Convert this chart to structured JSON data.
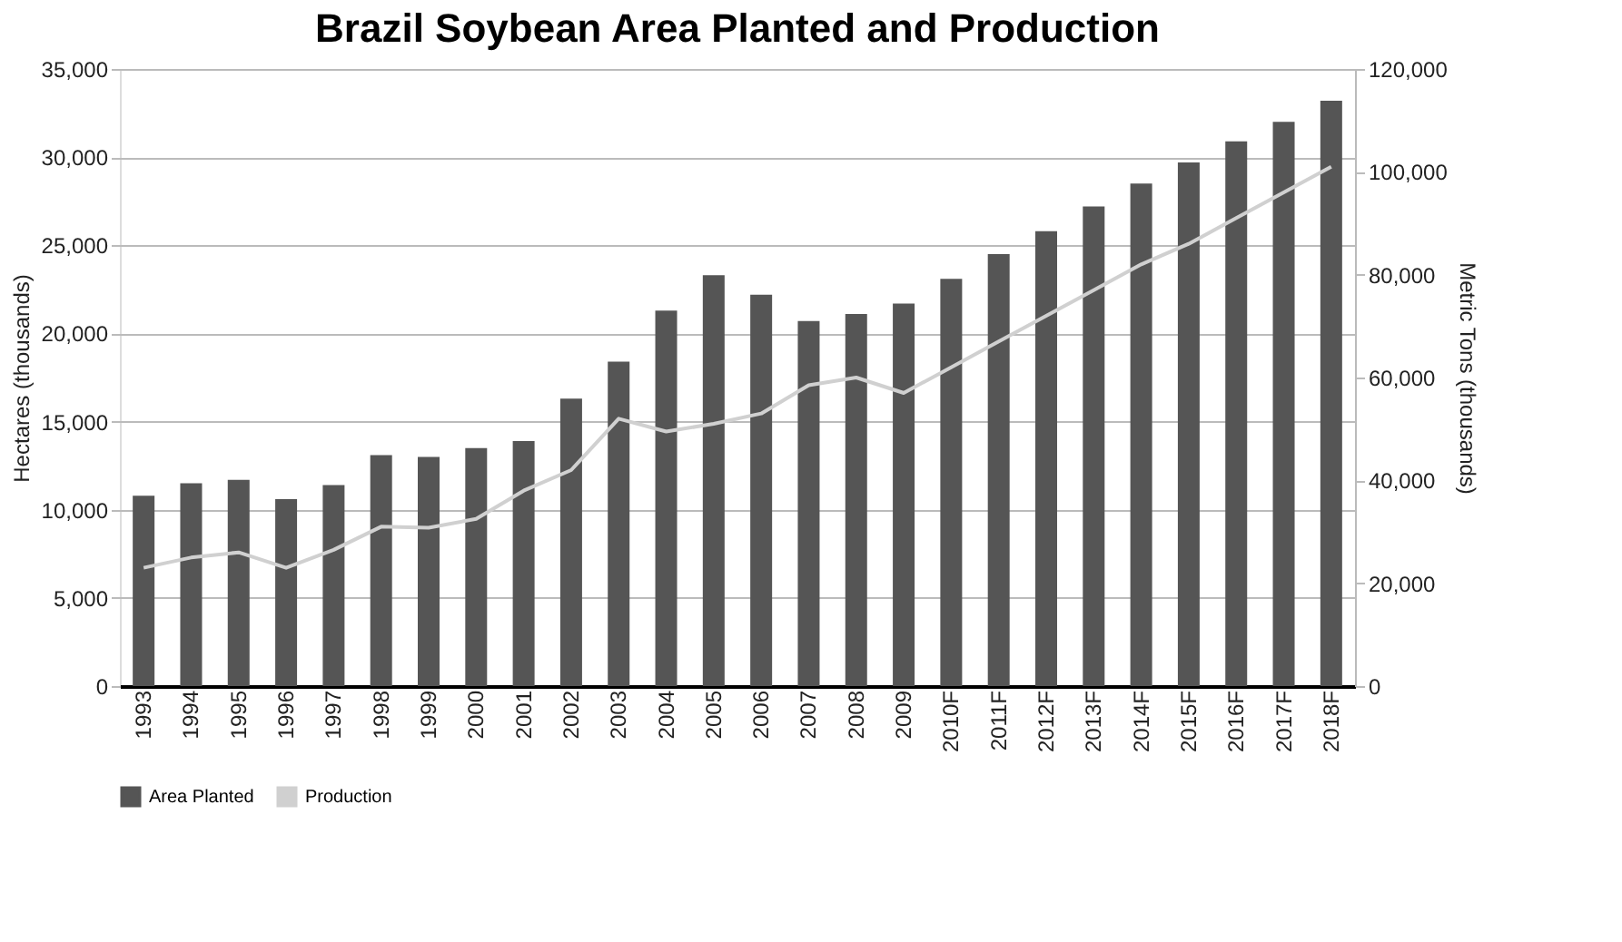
{
  "chart_data": {
    "type": "bar",
    "title": "Brazil Soybean Area Planted and Production",
    "ylabel": "Hectares (thousands)",
    "y2label": "Metric Tons (thousands)",
    "categories": [
      "1993",
      "1994",
      "1995",
      "1996",
      "1997",
      "1998",
      "1999",
      "2000",
      "2001",
      "2002",
      "2003",
      "2004",
      "2005",
      "2006",
      "2007",
      "2008",
      "2009",
      "2010F",
      "2011F",
      "2012F",
      "2013F",
      "2014F",
      "2015F",
      "2016F",
      "2017F",
      "2018F"
    ],
    "series": [
      {
        "name": "Area Planted",
        "color": "#555555",
        "values": [
          10800,
          11500,
          11700,
          10600,
          11400,
          13100,
          13000,
          13500,
          13900,
          16300,
          18400,
          21300,
          23300,
          22200,
          20700,
          21100,
          21700,
          23100,
          24500,
          25800,
          27200,
          28500,
          29700,
          30900,
          32000,
          33200
        ]
      },
      {
        "name": "Production",
        "type": "line",
        "axis": "y2",
        "color": "#d0d0d0",
        "values": [
          23000,
          25000,
          26000,
          23000,
          26500,
          31000,
          30800,
          32500,
          38000,
          42000,
          52000,
          49500,
          51000,
          53000,
          58500,
          60000,
          57000,
          62000,
          67000,
          72000,
          77000,
          82000,
          86000,
          91000,
          96000,
          101000
        ]
      }
    ],
    "ylim": [
      0,
      35000
    ],
    "yticks": [
      0,
      {
        "value": 5000,
        "label": "5,000"
      },
      {
        "value": 10000,
        "label": "10,000"
      },
      {
        "value": 15000,
        "label": "15,000"
      },
      {
        "value": 20000,
        "label": "20,000"
      },
      {
        "value": 25000,
        "label": "25,000"
      },
      {
        "value": 30000,
        "label": "30,000"
      },
      {
        "value": 35000,
        "label": "35,000"
      }
    ],
    "y2lim": [
      0,
      120000
    ],
    "y2ticks": [
      0,
      {
        "value": 20000,
        "label": "20,000"
      },
      {
        "value": 40000,
        "label": "40,000"
      },
      {
        "value": 60000,
        "label": "60,000"
      },
      {
        "value": 80000,
        "label": "80,000"
      },
      {
        "value": 100000,
        "label": "100,000"
      },
      {
        "value": 120000,
        "label": "120,000"
      }
    ],
    "grid": "y",
    "legend": "bottom"
  }
}
